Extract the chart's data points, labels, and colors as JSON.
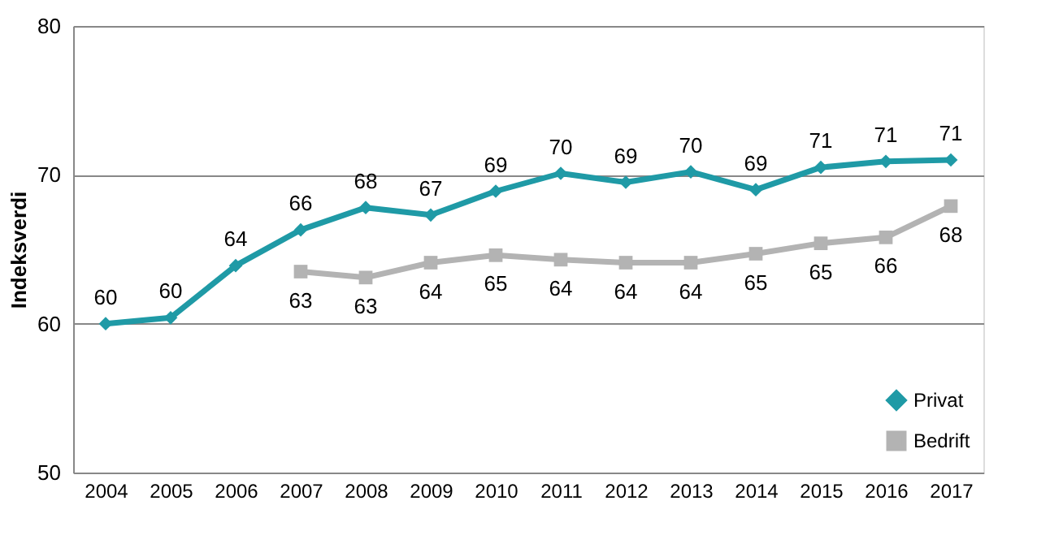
{
  "chart_data": {
    "type": "line",
    "ylabel": "Indeksverdi",
    "categories": [
      "2004",
      "2005",
      "2006",
      "2007",
      "2008",
      "2009",
      "2010",
      "2011",
      "2012",
      "2013",
      "2014",
      "2015",
      "2016",
      "2017"
    ],
    "series": [
      {
        "name": "Privat",
        "color": "#1f9aa6",
        "marker": "diamond",
        "values": [
          60.0,
          60.4,
          63.9,
          66.3,
          67.8,
          67.3,
          68.9,
          70.1,
          69.5,
          70.2,
          69.0,
          70.5,
          70.9,
          71.0
        ],
        "value_labels": [
          "60",
          "60",
          "64",
          "66",
          "68",
          "67",
          "69",
          "70",
          "69",
          "70",
          "69",
          "71",
          "71",
          "71"
        ]
      },
      {
        "name": "Bedrift",
        "color": "#b3b3b3",
        "marker": "square",
        "values": [
          null,
          null,
          null,
          63.5,
          63.1,
          64.1,
          64.6,
          64.3,
          64.1,
          64.1,
          64.7,
          65.4,
          65.8,
          67.9
        ],
        "value_labels": [
          null,
          null,
          null,
          "63",
          "63",
          "64",
          "65",
          "64",
          "64",
          "64",
          "65",
          "65",
          "66",
          "68"
        ]
      }
    ],
    "ylim": [
      50,
      80
    ],
    "yticks": [
      50,
      60,
      70,
      80
    ],
    "grid": "y",
    "legend": "bottom right"
  }
}
